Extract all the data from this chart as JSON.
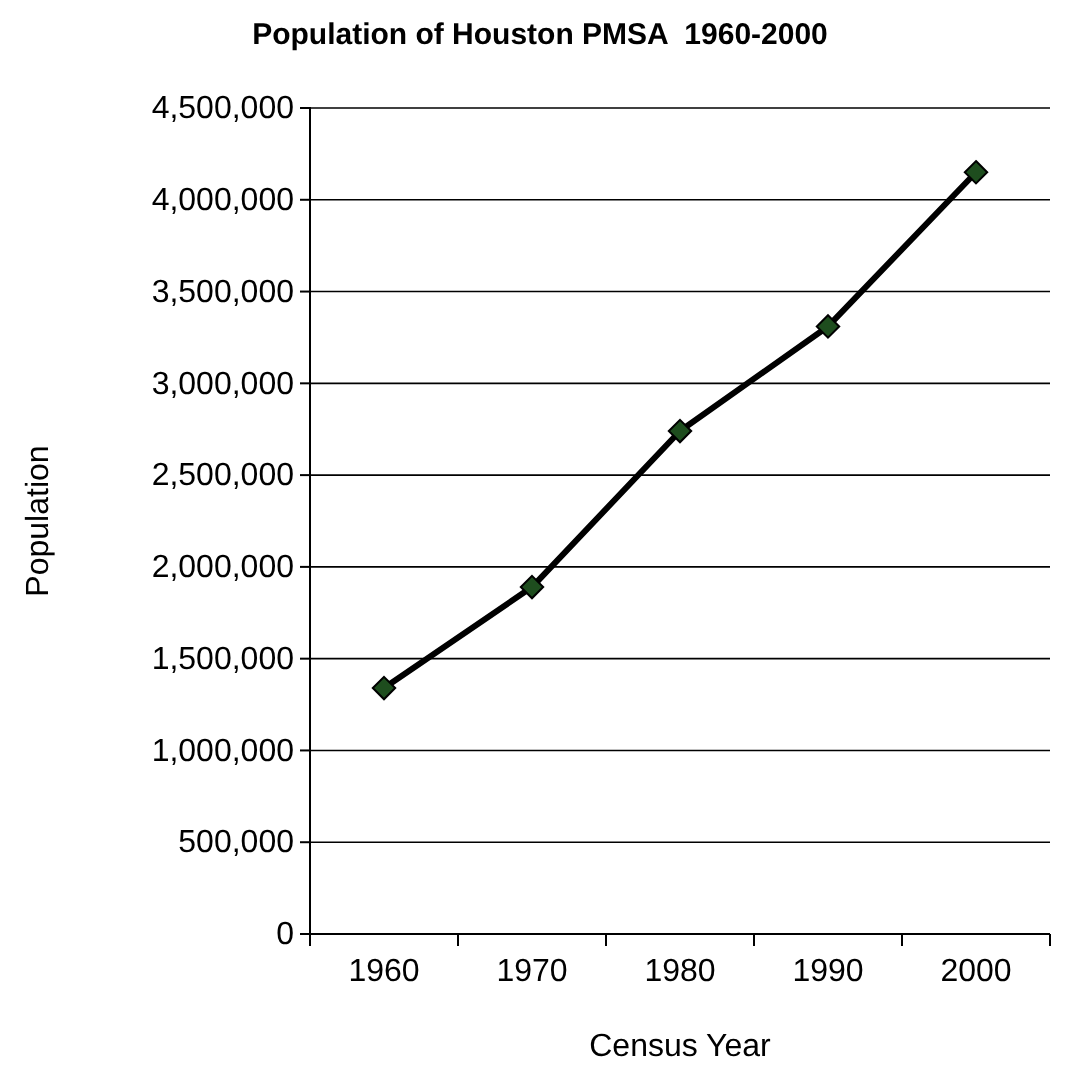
{
  "chart_data": {
    "type": "line",
    "title": "Population of Houston PMSA  1960-2000",
    "xlabel": "Census Year",
    "ylabel": "Population",
    "categories": [
      "1960",
      "1970",
      "1980",
      "1990",
      "2000"
    ],
    "series": [
      {
        "color": "#000000",
        "values": [
          1340000,
          1890000,
          2740000,
          3310000,
          4150000
        ]
      }
    ],
    "ylim": [
      0,
      4500000
    ],
    "yticks": [
      {
        "value": 0,
        "label": "0"
      },
      {
        "value": 500000,
        "label": "500,000"
      },
      {
        "value": 1000000,
        "label": "1,000,000"
      },
      {
        "value": 1500000,
        "label": "1,500,000"
      },
      {
        "value": 2000000,
        "label": "2,000,000"
      },
      {
        "value": 2500000,
        "label": "2,500,000"
      },
      {
        "value": 3000000,
        "label": "3,000,000"
      },
      {
        "value": 3500000,
        "label": "3,500,000"
      },
      {
        "value": 4000000,
        "label": "4,000,000"
      },
      {
        "value": 4500000,
        "label": "4,500,000"
      }
    ],
    "grid": "y",
    "marker": "diamond",
    "line_style": "solid"
  }
}
